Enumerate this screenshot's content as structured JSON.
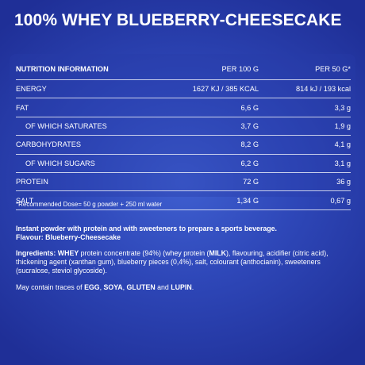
{
  "title": "100% WHEY BLUEBERRY-CHEESECAKE",
  "table": {
    "header": {
      "label": "NUTRITION INFORMATION",
      "col1": "PER 100 G",
      "col2": "PER 50 G*"
    },
    "rows": [
      {
        "label": "ENERGY",
        "per100": "1627 KJ / 385 KCAL",
        "per50": "814 kJ / 193 kcal"
      },
      {
        "label": "FAT",
        "per100": "6,6 G",
        "per50": "3,3 g"
      },
      {
        "label": "OF WHICH SATURATES",
        "per100": "3,7 G",
        "per50": "1,9 g"
      },
      {
        "label": "CARBOHYDRATES",
        "per100": "8,2 G",
        "per50": "4,1 g"
      },
      {
        "label": "OF WHICH SUGARS",
        "per100": "6,2 G",
        "per50": "3,1 g"
      },
      {
        "label": "PROTEIN",
        "per100": "72 G",
        "per50": "36 g"
      },
      {
        "label": "SALT",
        "per100": "1,34 G",
        "per50": "0,67 g"
      }
    ]
  },
  "footnote": "*Recommended Dose= 50 g powder + 250 ml water",
  "description": {
    "line1": "Instant powder with protein and with sweeteners to prepare a sports beverage.",
    "line2": "Flavour: Blueberry-Cheesecake"
  },
  "ingredients": {
    "label": "Ingredients:",
    "whey": "WHEY",
    "text1": " protein concentrate (94%) (whey protein (",
    "milk": "MILK",
    "text2": "), flavouring, acidifier (citric acid), thickening agent (xanthan gum), blueberry pieces (0,4%), salt, colourant (anthocianin), sweeteners (sucralose, steviol glycoside)."
  },
  "traces": {
    "prefix": "May contain traces of ",
    "egg": "EGG",
    "sep1": ", ",
    "soya": "SOYA",
    "sep2": ", ",
    "gluten": "GLUTEN",
    "and": " and ",
    "lupin": "LUPIN",
    "end": "."
  },
  "colors": {
    "background": "#2e47b8",
    "text": "#ffffff"
  }
}
